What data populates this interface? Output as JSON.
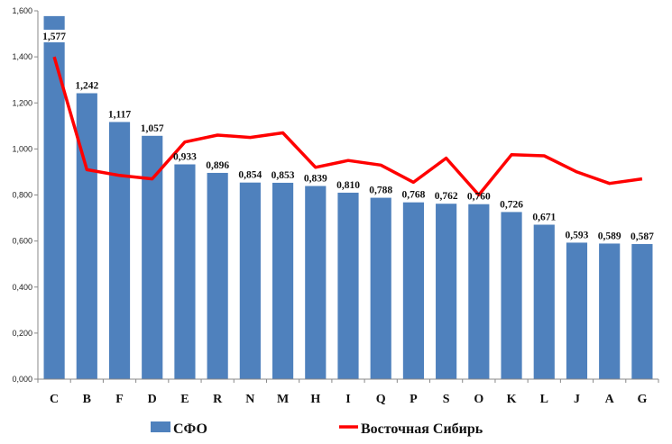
{
  "chart_data": {
    "type": "bar",
    "title": "",
    "xlabel": "",
    "ylabel": "",
    "ylim": [
      0,
      1.6
    ],
    "yticks": [
      0,
      0.2,
      0.4,
      0.6,
      0.8,
      1.0,
      1.2,
      1.4,
      1.6
    ],
    "ytick_labels": [
      "0,000",
      "0,200",
      "0,400",
      "0,600",
      "0,800",
      "1,000",
      "1,200",
      "1,400",
      "1,600"
    ],
    "categories": [
      "C",
      "B",
      "F",
      "D",
      "E",
      "R",
      "N",
      "M",
      "H",
      "I",
      "Q",
      "P",
      "S",
      "O",
      "K",
      "L",
      "J",
      "A",
      "G"
    ],
    "series": [
      {
        "name": "СФО",
        "type": "bar",
        "color": "#4F81BD",
        "values": [
          1.577,
          1.242,
          1.117,
          1.057,
          0.933,
          0.896,
          0.854,
          0.853,
          0.839,
          0.81,
          0.788,
          0.768,
          0.762,
          0.76,
          0.726,
          0.671,
          0.593,
          0.589,
          0.587
        ],
        "labels": [
          "1,577",
          "1,242",
          "1,117",
          "1,057",
          "0,933",
          "0,896",
          "0,854",
          "0,853",
          "0,839",
          "0,810",
          "0,788",
          "0,768",
          "0,762",
          "0,760",
          "0,726",
          "0,671",
          "0,593",
          "0,589",
          "0,587"
        ]
      },
      {
        "name": "Восточная Сибирь",
        "type": "line",
        "color": "#FF0000",
        "values": [
          1.4,
          0.91,
          0.885,
          0.87,
          1.03,
          1.06,
          1.05,
          1.07,
          0.92,
          0.95,
          0.93,
          0.855,
          0.96,
          0.8,
          0.975,
          0.97,
          0.9,
          0.85,
          0.87
        ]
      }
    ],
    "grid": false,
    "legend_position": "bottom"
  }
}
